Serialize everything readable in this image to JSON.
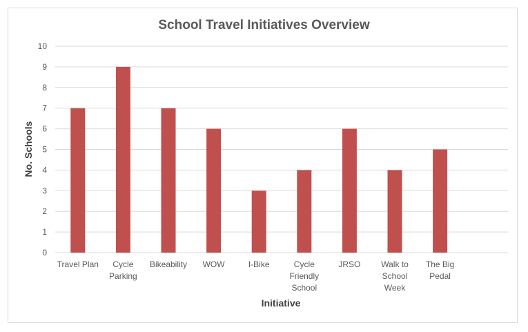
{
  "chart_data": {
    "type": "bar",
    "title": "School Travel Initiatives Overview",
    "xlabel": "Initiative",
    "ylabel": "No. Schools",
    "categories": [
      [
        "Travel Plan"
      ],
      [
        "Cycle",
        "Parking"
      ],
      [
        "Bikeability"
      ],
      [
        "WOW"
      ],
      [
        "I-Bike"
      ],
      [
        "Cycle",
        "Friendly",
        "School"
      ],
      [
        "JRSO"
      ],
      [
        "Walk to",
        "School",
        "Week"
      ],
      [
        "The Big",
        "Pedal"
      ]
    ],
    "values": [
      7,
      9,
      7,
      6,
      3,
      4,
      6,
      4,
      5
    ],
    "ylim": [
      0,
      10
    ],
    "yticks": [
      0,
      1,
      2,
      3,
      4,
      5,
      6,
      7,
      8,
      9,
      10
    ],
    "grid": true,
    "bar_color": "#c0504d",
    "gridline_color": "#d9d9d9"
  }
}
